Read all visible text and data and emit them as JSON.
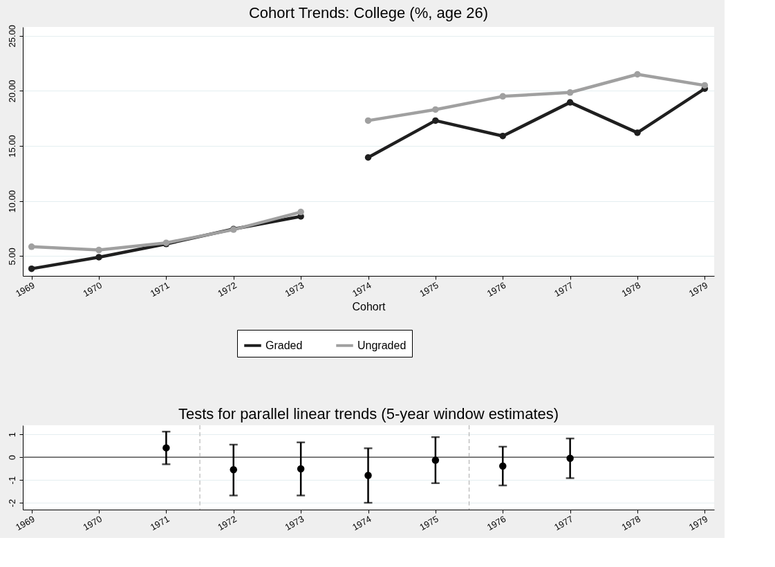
{
  "chart_data": [
    {
      "type": "line",
      "title": "Cohort Trends: College (%, age 26)",
      "xlabel": "Cohort",
      "legend": "bottom",
      "grid": "y",
      "marker": "circle",
      "line_style": "solid",
      "xlim": [
        1968.87,
        1979.14
      ],
      "xticks": [
        1969,
        1970,
        1971,
        1972,
        1973,
        1974,
        1975,
        1976,
        1977,
        1978,
        1979
      ],
      "ylim": [
        3.2,
        25.8
      ],
      "yticks": [
        {
          "value": 5,
          "label": "5.00"
        },
        {
          "value": 10,
          "label": "10.00"
        },
        {
          "value": 15,
          "label": "15.00"
        },
        {
          "value": 20,
          "label": "20.00"
        },
        {
          "value": 25,
          "label": "25.00"
        }
      ],
      "series": [
        {
          "name": "Graded",
          "color": "#1f1f1f",
          "x": [
            1969,
            1970,
            1971,
            1972,
            1973
          ],
          "values": [
            3.85,
            4.9,
            6.1,
            7.45,
            8.6
          ]
        },
        {
          "name": "Ungraded",
          "color": "#a0a0a0",
          "x": [
            1969,
            1970,
            1971,
            1972,
            1973
          ],
          "values": [
            5.85,
            5.55,
            6.2,
            7.4,
            9.0
          ]
        },
        {
          "color": "#1f1f1f",
          "x": [
            1974,
            1975,
            1976,
            1977,
            1978,
            1979
          ],
          "values": [
            13.95,
            17.3,
            15.9,
            18.95,
            16.2,
            20.2
          ]
        },
        {
          "color": "#a0a0a0",
          "x": [
            1974,
            1975,
            1976,
            1977,
            1978,
            1979
          ],
          "values": [
            17.3,
            18.3,
            19.5,
            19.85,
            21.5,
            20.5
          ]
        }
      ]
    },
    {
      "type": "scatter",
      "title": "Tests for parallel linear trends (5-year window estimates)",
      "grid": "y",
      "marker": "circle",
      "xlim": [
        1968.87,
        1979.14
      ],
      "xticks": [
        1969,
        1970,
        1971,
        1972,
        1973,
        1974,
        1975,
        1976,
        1977,
        1978,
        1979
      ],
      "ylim": [
        -2.3,
        1.4
      ],
      "yticks": [
        -2,
        -1,
        0,
        1
      ],
      "x": [
        1971,
        1972,
        1973,
        1974,
        1975,
        1976,
        1977
      ],
      "values": [
        0.41,
        -0.55,
        -0.51,
        -0.8,
        -0.13,
        -0.39,
        -0.05
      ],
      "color": "#000000",
      "errors": [
        [
          -0.31,
          1.12
        ],
        [
          -1.68,
          0.55
        ],
        [
          -1.68,
          0.65
        ],
        [
          -2.0,
          0.39
        ],
        [
          -1.14,
          0.88
        ],
        [
          -1.24,
          0.46
        ],
        [
          -0.92,
          0.82
        ]
      ],
      "ref_lines": [
        {
          "axis": "y",
          "value": 0,
          "color": "#555555",
          "line_style": "solid"
        },
        {
          "axis": "x",
          "value": 1971.5,
          "color": "#aaaaaa",
          "line_style": "dashed"
        },
        {
          "axis": "x",
          "value": 1975.5,
          "color": "#aaaaaa",
          "line_style": "dashed"
        }
      ]
    }
  ]
}
